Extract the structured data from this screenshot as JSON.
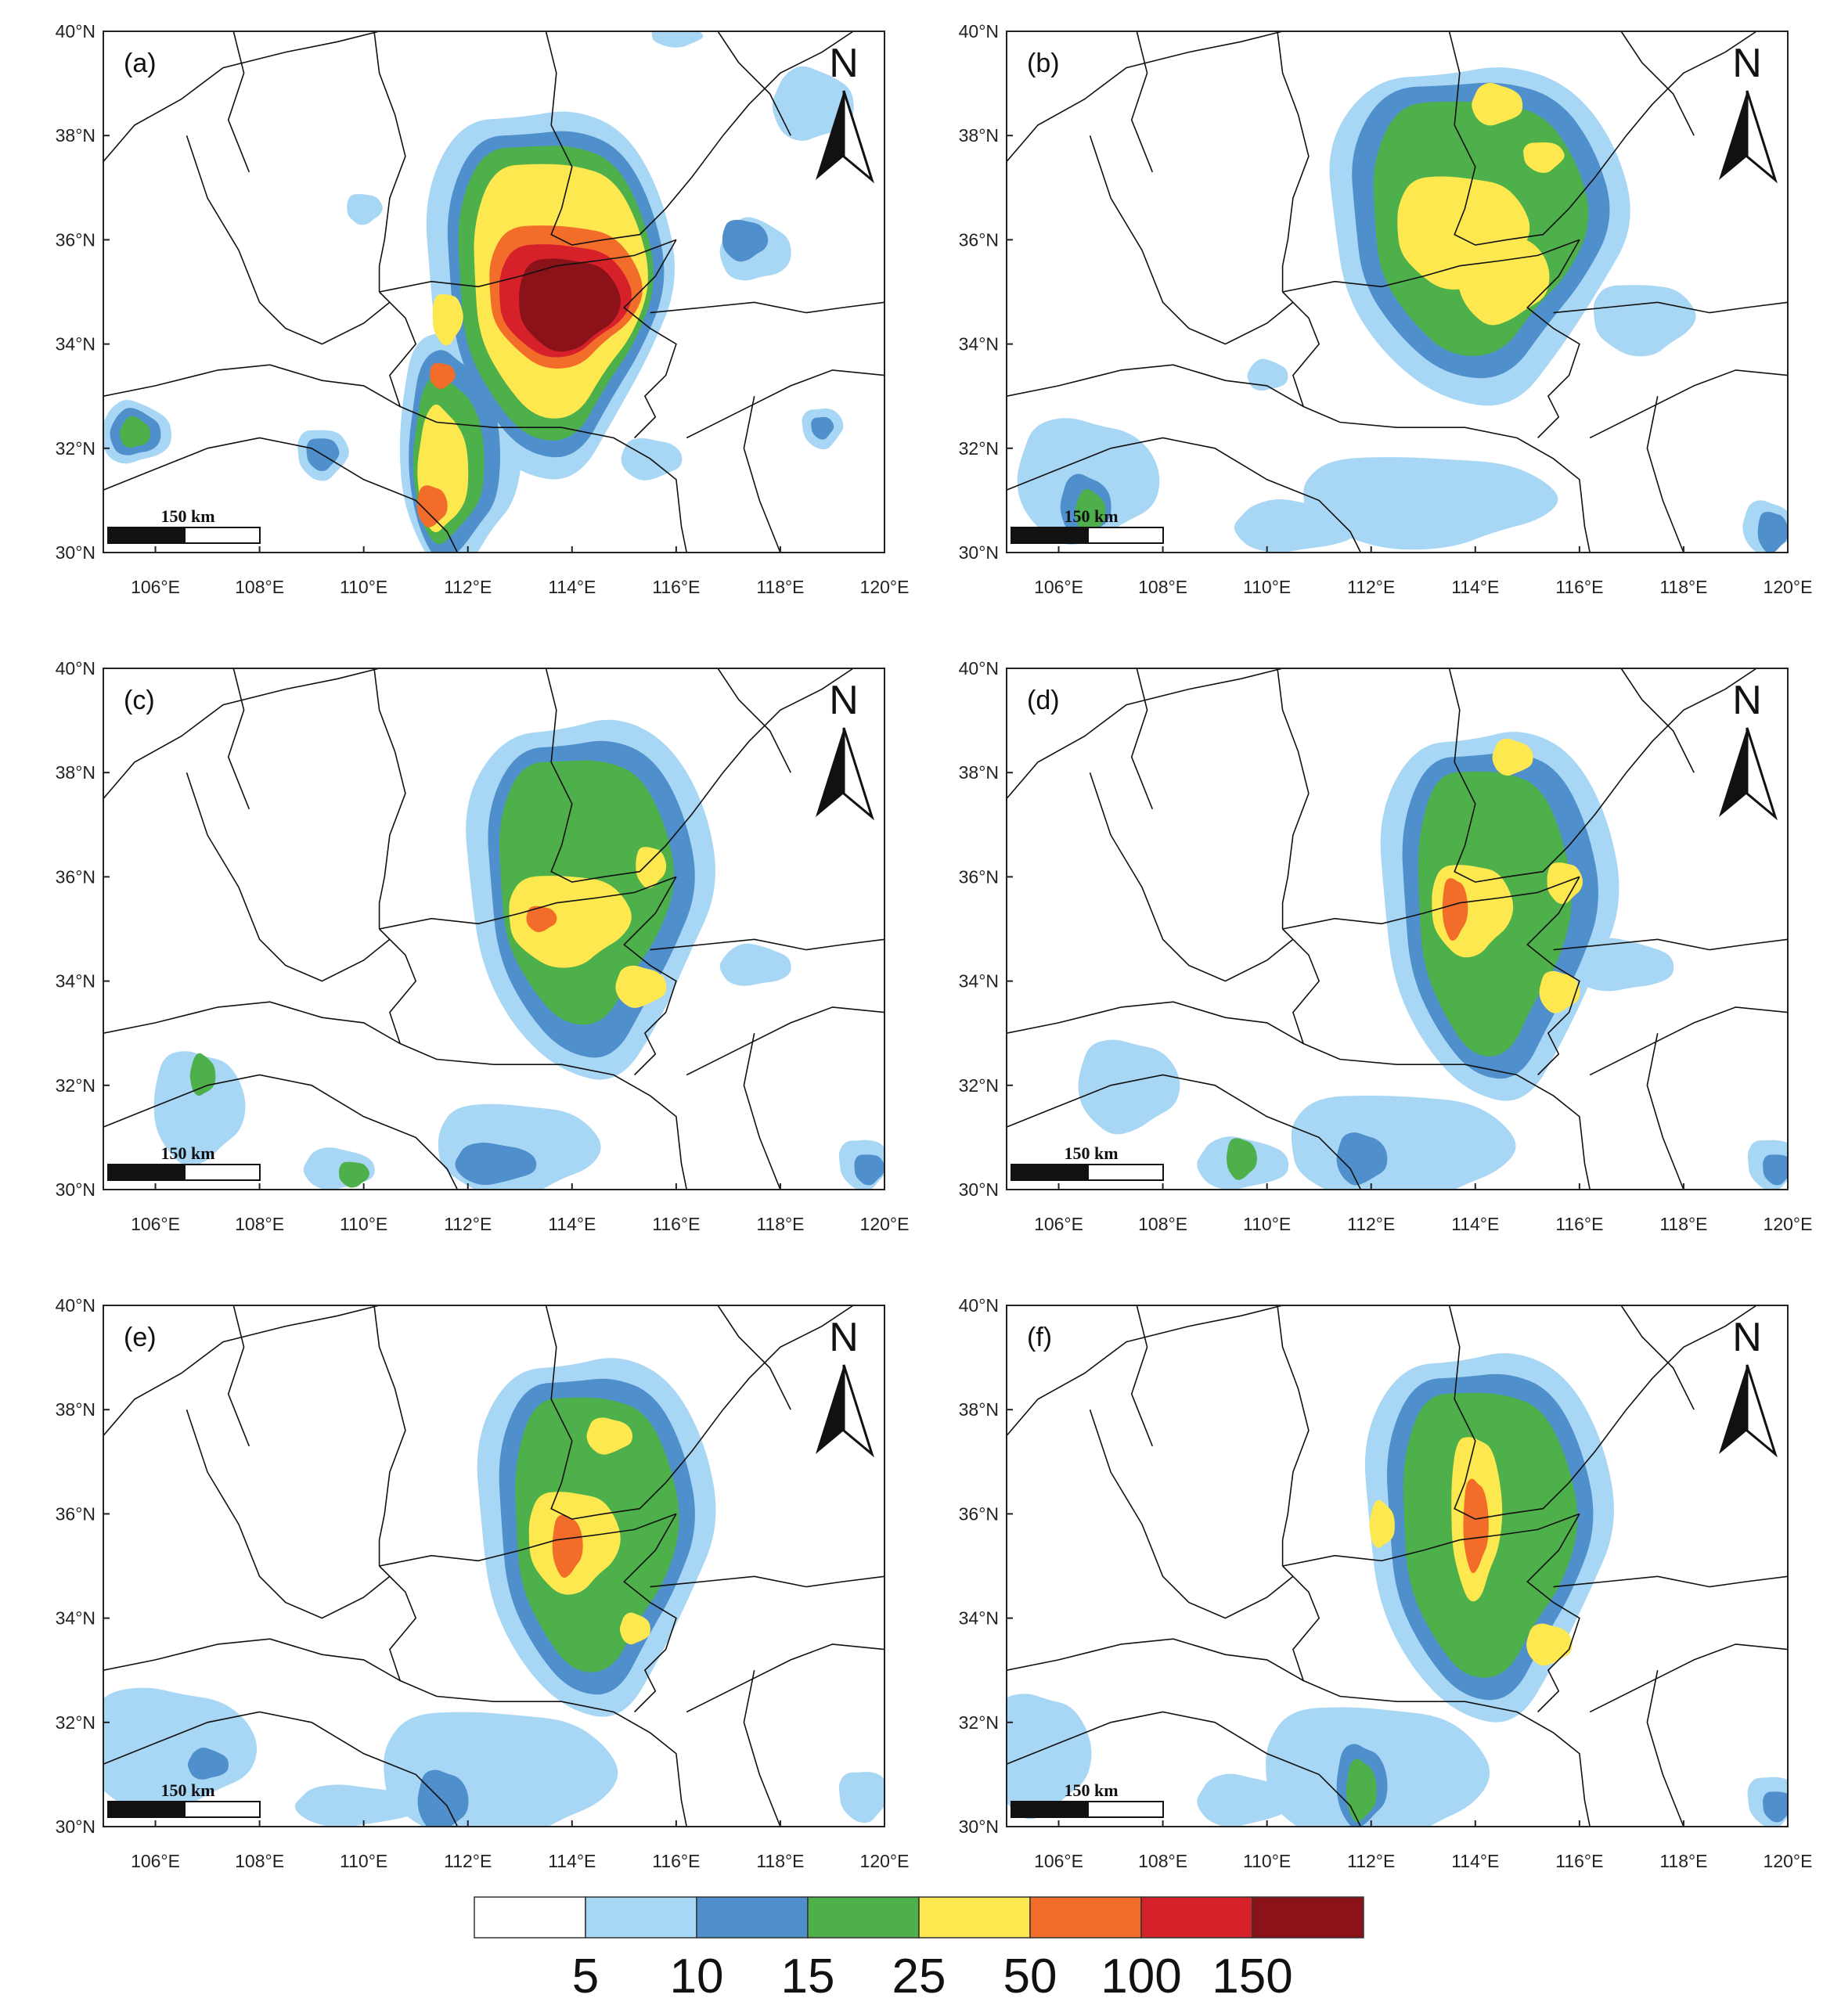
{
  "lon_labels": [
    "106°E",
    "108°E",
    "110°E",
    "112°E",
    "114°E",
    "116°E",
    "118°E",
    "120°E"
  ],
  "lat_labels": [
    "30°N",
    "32°N",
    "34°N",
    "36°N",
    "38°N",
    "40°N"
  ],
  "north_letter": "N",
  "scale_bar_label": "150 km",
  "panels": [
    {
      "label": "(a)"
    },
    {
      "label": "(b)"
    },
    {
      "label": "(c)"
    },
    {
      "label": "(d)"
    },
    {
      "label": "(e)"
    },
    {
      "label": "(f)"
    }
  ],
  "colorbar": {
    "colors": [
      "#ffffff",
      "#a8d6f5",
      "#4f8fcb",
      "#4db04a",
      "#fde84f",
      "#f26c2a",
      "#d7212a",
      "#8b1218"
    ],
    "labels": [
      "5",
      "10",
      "15",
      "25",
      "50",
      "100",
      "150"
    ]
  }
}
